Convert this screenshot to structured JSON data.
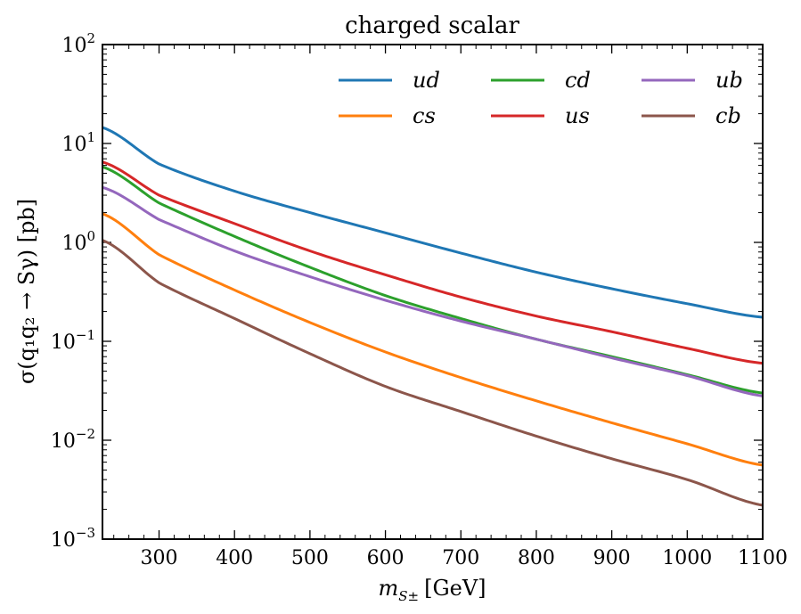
{
  "chart_data": {
    "type": "line",
    "title": "charged scalar",
    "xlabel": "m_{S±} [GeV]",
    "xlabel_main": "m",
    "xlabel_sub": "S±",
    "xlabel_unit": "[GeV]",
    "ylabel": "σ(q1q2 → Sγ) [pb]",
    "ylabel_text": "σ(q₁q₂ → Sγ) [pb]",
    "xlim": [
      225,
      1100
    ],
    "ylim": [
      0.001,
      100
    ],
    "yscale": "log",
    "x_ticks": [
      300,
      400,
      500,
      600,
      700,
      800,
      900,
      1000,
      1100
    ],
    "x_tick_labels": [
      "300",
      "400",
      "500",
      "600",
      "700",
      "800",
      "900",
      "1000",
      "1100"
    ],
    "y_ticks": [
      0.001,
      0.01,
      0.1,
      1,
      10,
      100
    ],
    "y_tick_bases": [
      "10",
      "10",
      "10",
      "10",
      "10",
      "10"
    ],
    "y_tick_exps": [
      "−3",
      "−2",
      "−1",
      "0",
      "1",
      "2"
    ],
    "legend_location": "top-right",
    "grid": false,
    "x": [
      225,
      300,
      400,
      500,
      600,
      700,
      800,
      900,
      1000,
      1100
    ],
    "series": [
      {
        "name": "ud",
        "color": "#1f77b4",
        "values": [
          14.5,
          6.2,
          3.3,
          2.0,
          1.25,
          0.78,
          0.5,
          0.34,
          0.24,
          0.175
        ]
      },
      {
        "name": "cs",
        "color": "#ff7f0e",
        "values": [
          1.95,
          0.75,
          0.33,
          0.155,
          0.078,
          0.043,
          0.025,
          0.015,
          0.0092,
          0.0056
        ]
      },
      {
        "name": "cd",
        "color": "#2ca02c",
        "values": [
          5.8,
          2.5,
          1.15,
          0.56,
          0.29,
          0.17,
          0.105,
          0.07,
          0.046,
          0.03
        ]
      },
      {
        "name": "us",
        "color": "#d62728",
        "values": [
          6.5,
          3.0,
          1.55,
          0.82,
          0.47,
          0.28,
          0.18,
          0.125,
          0.085,
          0.06
        ]
      },
      {
        "name": "ub",
        "color": "#9467bd",
        "values": [
          3.6,
          1.7,
          0.82,
          0.45,
          0.26,
          0.16,
          0.105,
          0.068,
          0.045,
          0.028
        ]
      },
      {
        "name": "cb",
        "color": "#8c564b",
        "values": [
          1.05,
          0.39,
          0.17,
          0.075,
          0.035,
          0.0195,
          0.011,
          0.0065,
          0.004,
          0.0022
        ]
      }
    ]
  }
}
